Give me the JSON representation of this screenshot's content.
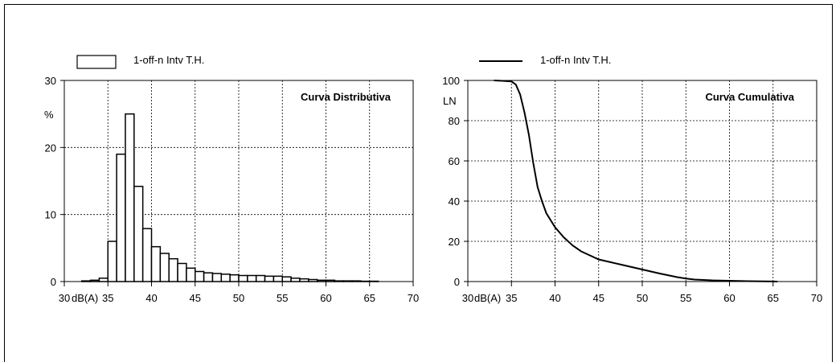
{
  "chart_data": [
    {
      "type": "bar",
      "legend": "1-off-n Intv T.H.",
      "title": "Curva Distributiva",
      "ylabel": "%",
      "xunit": "dB(A)",
      "xlim": [
        30,
        70
      ],
      "ylim": [
        0,
        30
      ],
      "xticks": [
        30,
        35,
        40,
        45,
        50,
        55,
        60,
        65,
        70
      ],
      "yticks": [
        0,
        10,
        20,
        30
      ],
      "bin_width": 1,
      "x": [
        32,
        33,
        34,
        35,
        36,
        37,
        38,
        39,
        40,
        41,
        42,
        43,
        44,
        45,
        46,
        47,
        48,
        49,
        50,
        51,
        52,
        53,
        54,
        55,
        56,
        57,
        58,
        59,
        60,
        61,
        62,
        63,
        64,
        65
      ],
      "values": [
        0.1,
        0.2,
        0.5,
        6.0,
        19.0,
        25.0,
        14.2,
        7.9,
        5.2,
        4.2,
        3.4,
        2.7,
        2.0,
        1.5,
        1.3,
        1.2,
        1.1,
        1.0,
        0.9,
        0.9,
        0.9,
        0.8,
        0.8,
        0.7,
        0.5,
        0.4,
        0.3,
        0.2,
        0.2,
        0.1,
        0.1,
        0.1,
        0.05,
        0.05
      ]
    },
    {
      "type": "line",
      "legend": "1-off-n Intv T.H.",
      "title": "Curva Cumulativa",
      "ylabel": "LN",
      "xunit": "dB(A)",
      "xlim": [
        30,
        70
      ],
      "ylim": [
        0,
        100
      ],
      "xticks": [
        30,
        35,
        40,
        45,
        50,
        55,
        60,
        65,
        70
      ],
      "yticks": [
        0,
        20,
        40,
        60,
        80,
        100
      ],
      "x": [
        33,
        34,
        35,
        35.5,
        36,
        36.5,
        37,
        37.5,
        38,
        38.5,
        39,
        40,
        41,
        42,
        43,
        44,
        45,
        46,
        48,
        50,
        52,
        54,
        55,
        56,
        58,
        60,
        62,
        64,
        65,
        65.5
      ],
      "y": [
        100,
        99.8,
        99.5,
        98,
        93,
        84,
        73,
        59,
        47,
        40,
        34,
        27,
        22,
        18,
        15,
        13,
        11,
        10,
        8,
        6,
        4,
        2.2,
        1.5,
        1,
        0.6,
        0.4,
        0.2,
        0.1,
        0.05,
        0
      ]
    }
  ]
}
